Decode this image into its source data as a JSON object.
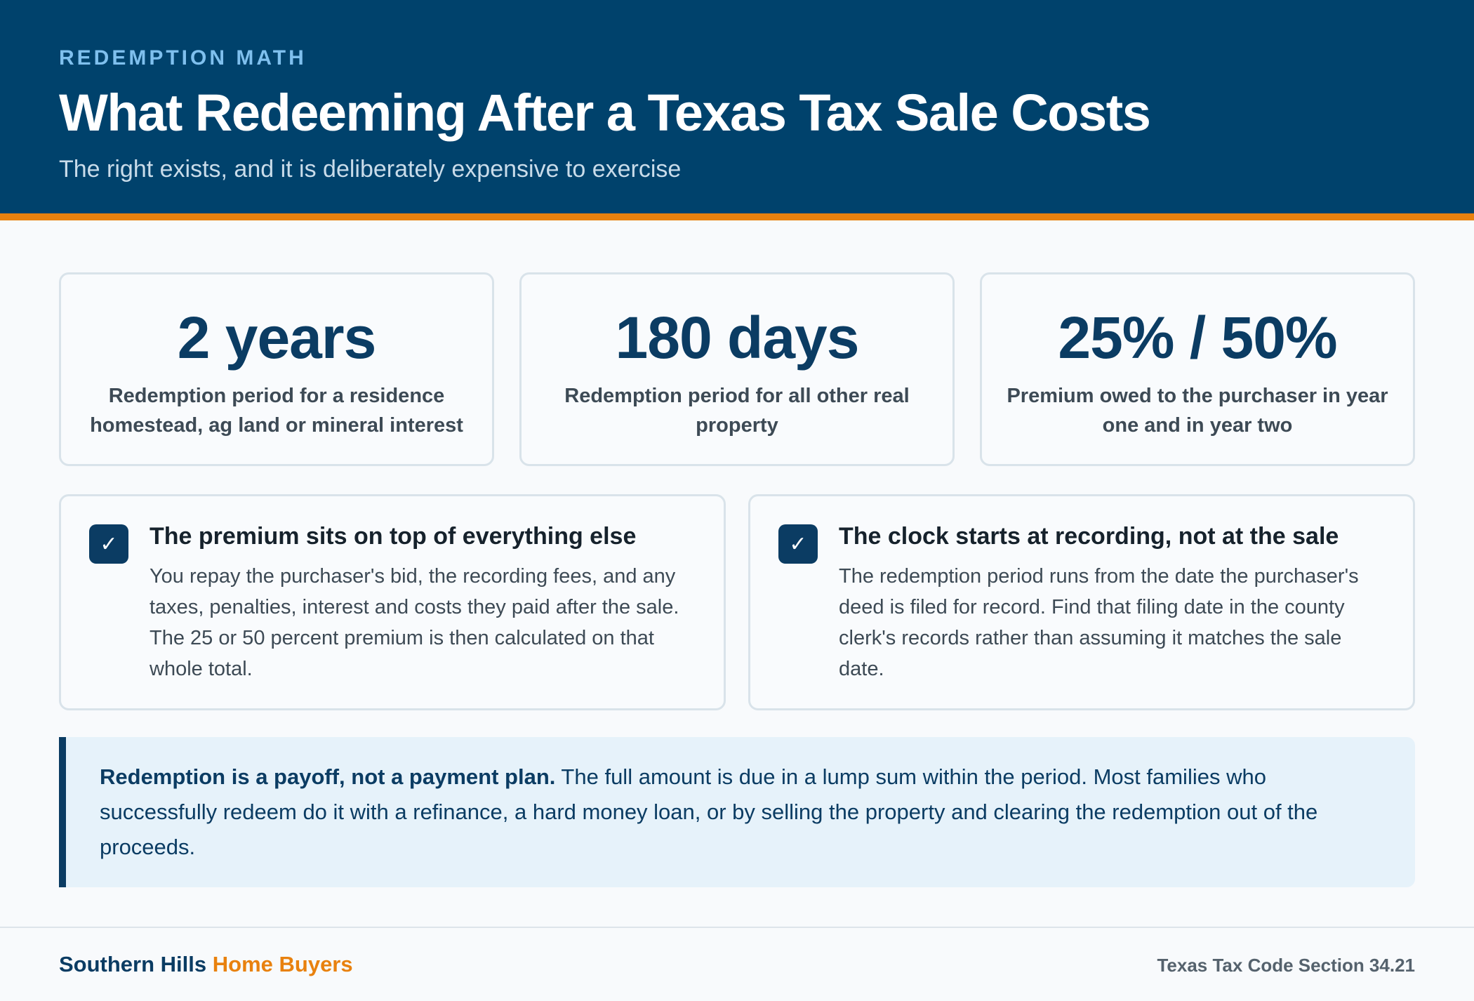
{
  "header": {
    "eyebrow": "REDEMPTION MATH",
    "title": "What Redeeming After a Texas Tax Sale Costs",
    "subtitle": "The right exists, and it is deliberately expensive to exercise",
    "background_color": "#00426c",
    "accent_color": "#e8810e"
  },
  "stats": [
    {
      "value": "2 years",
      "description": "Redemption period for a residence homestead, ag land or mineral interest"
    },
    {
      "value": "180 days",
      "description": "Redemption period for all other real property"
    },
    {
      "value": "25% / 50%",
      "description": "Premium owed to the purchaser in year one and in year two"
    }
  ],
  "points": [
    {
      "icon": "check-icon",
      "title": "The premium sits on top of everything else",
      "body": "You repay the purchaser's bid, the recording fees, and any taxes, penalties, interest and costs they paid after the sale. The 25 or 50 percent premium is then calculated on that whole total."
    },
    {
      "icon": "check-icon",
      "title": "The clock starts at recording, not at the sale",
      "body": "The redemption period runs from the date the purchaser's deed is filed for record. Find that filing date in the county clerk's records rather than assuming it matches the sale date."
    }
  ],
  "callout": {
    "lead": "Redemption is a payoff, not a payment plan.",
    "text": " The full amount is due in a lump sum within the period. Most families who successfully redeem do it with a refinance, a hard money loan, or by selling the property and clearing the redemption out of the proceeds."
  },
  "footer": {
    "brand_primary": "Southern Hills",
    "brand_accent": "Home Buyers",
    "source": "Texas Tax Code Section 34.21"
  }
}
